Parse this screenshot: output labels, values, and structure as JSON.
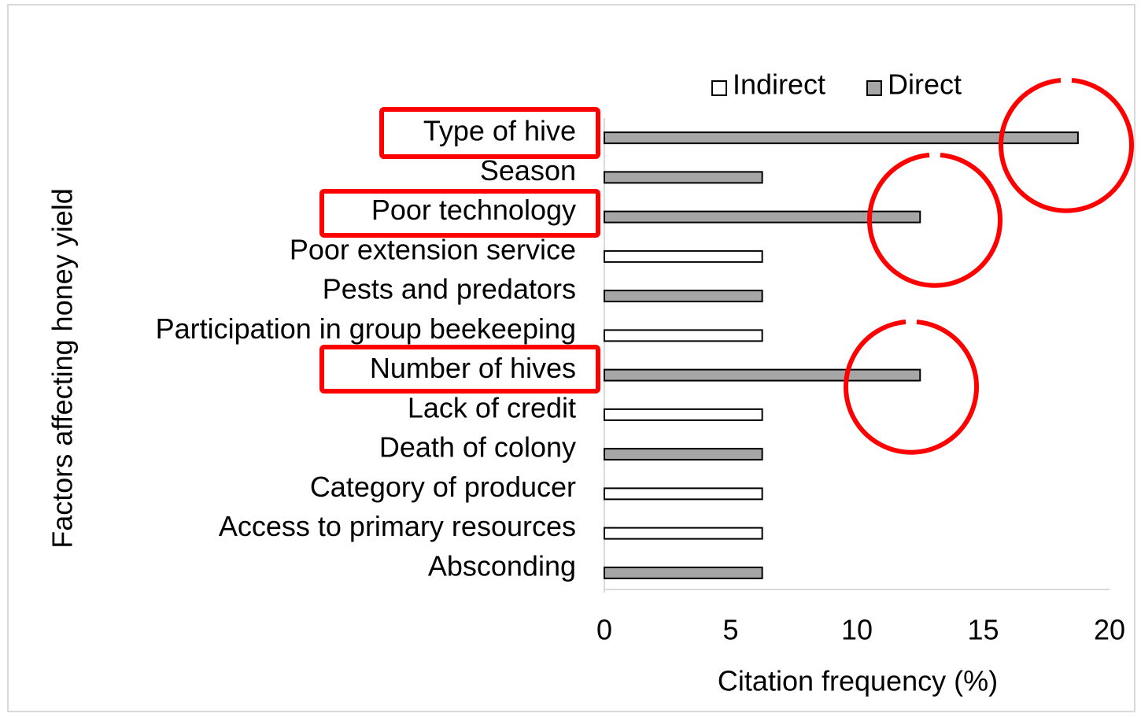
{
  "chart_data": {
    "type": "bar",
    "orientation": "horizontal",
    "xlabel": "Citation frequency (%)",
    "ylabel": "Factors affecting honey yield",
    "categories": [
      "Type of hive",
      "Season",
      "Poor technology",
      "Poor extension service",
      "Pests and predators",
      "Participation in group beekeeping",
      "Number of hives",
      "Lack of credit",
      "Death of colony",
      "Category of producer",
      "Access to primary resources",
      "Absconding"
    ],
    "series": [
      {
        "name": "Indirect",
        "color": "#ffffff",
        "values": [
          null,
          null,
          null,
          6.25,
          null,
          6.25,
          null,
          6.25,
          null,
          6.25,
          6.25,
          null
        ]
      },
      {
        "name": "Direct",
        "color": "#a6a6a6",
        "values": [
          18.75,
          6.25,
          12.5,
          null,
          6.25,
          null,
          12.5,
          null,
          6.25,
          null,
          null,
          6.25
        ]
      }
    ],
    "xlim": [
      0,
      20
    ],
    "xticks": [
      0,
      5,
      10,
      15,
      20
    ],
    "legend": "top"
  }
}
